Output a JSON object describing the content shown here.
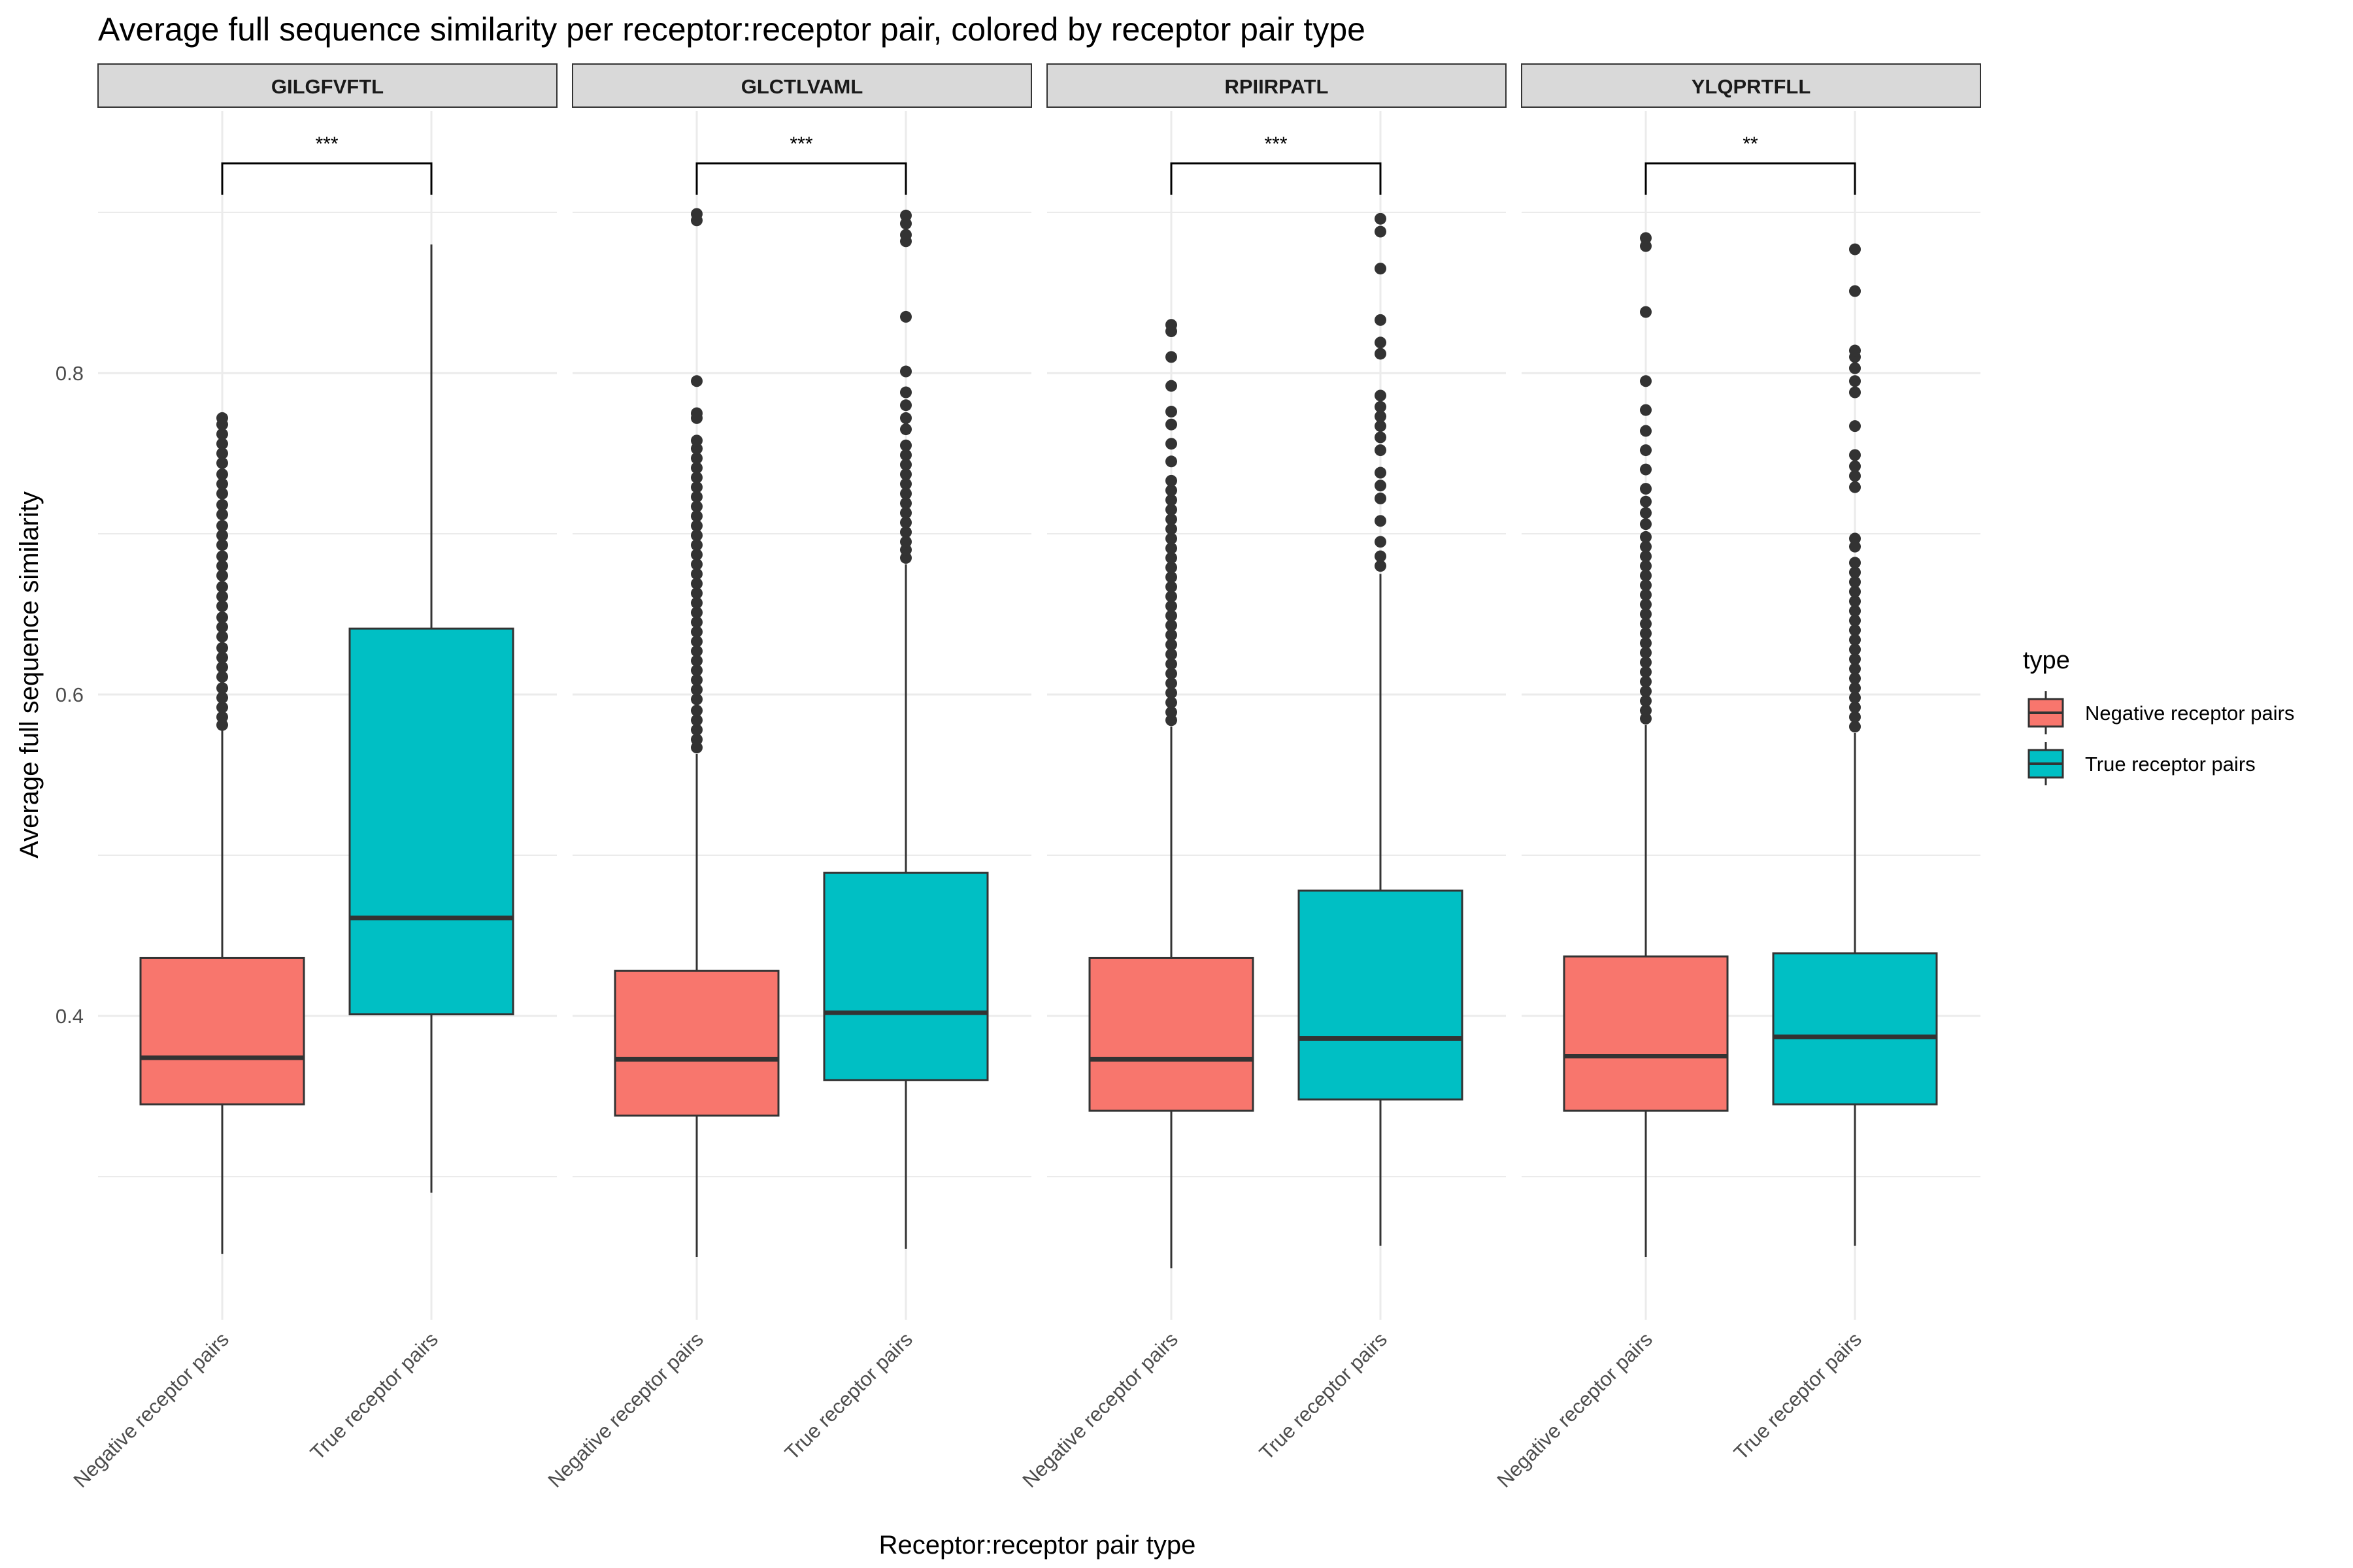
{
  "chart_data": {
    "type": "box",
    "title": "Average full sequence similarity per receptor:receptor pair, colored by receptor pair type",
    "xlabel": "Receptor:receptor pair type",
    "ylabel": "Average full sequence similarity",
    "y_ticks": [
      "0.4",
      "0.6",
      "0.8"
    ],
    "ylim": [
      0.235,
      0.985
    ],
    "categories": [
      "Negative receptor pairs",
      "True receptor pairs"
    ],
    "legend": {
      "title": "type",
      "position": "right",
      "entries": [
        {
          "label": "Negative receptor pairs",
          "color": "#F8766D"
        },
        {
          "label": "True receptor pairs",
          "color": "#00BFC4"
        }
      ]
    },
    "grid": true,
    "panels": [
      {
        "strip": "GILGFVFTL",
        "significance": "***",
        "boxes": [
          {
            "category": "Negative receptor pairs",
            "whisker_low": 0.252,
            "q1": 0.345,
            "median": 0.374,
            "q3": 0.436,
            "whisker_high": 0.578,
            "outliers": [
              0.581,
              0.586,
              0.592,
              0.598,
              0.604,
              0.611,
              0.617,
              0.623,
              0.629,
              0.636,
              0.642,
              0.648,
              0.655,
              0.661,
              0.667,
              0.674,
              0.68,
              0.686,
              0.693,
              0.699,
              0.705,
              0.712,
              0.718,
              0.725,
              0.731,
              0.737,
              0.744,
              0.75,
              0.756,
              0.762,
              0.768,
              0.772
            ]
          },
          {
            "category": "True receptor pairs",
            "whisker_low": 0.29,
            "q1": 0.401,
            "median": 0.461,
            "q3": 0.641,
            "whisker_high": 0.88,
            "outliers": []
          }
        ]
      },
      {
        "strip": "GLCTLVAML",
        "significance": "***",
        "boxes": [
          {
            "category": "Negative receptor pairs",
            "whisker_low": 0.25,
            "q1": 0.338,
            "median": 0.373,
            "q3": 0.428,
            "whisker_high": 0.563,
            "outliers": [
              0.567,
              0.572,
              0.578,
              0.584,
              0.59,
              0.597,
              0.603,
              0.609,
              0.615,
              0.621,
              0.627,
              0.633,
              0.639,
              0.645,
              0.651,
              0.657,
              0.663,
              0.669,
              0.675,
              0.681,
              0.687,
              0.693,
              0.699,
              0.705,
              0.711,
              0.717,
              0.723,
              0.729,
              0.735,
              0.741,
              0.747,
              0.753,
              0.758,
              0.772,
              0.775,
              0.795,
              0.895,
              0.899
            ]
          },
          {
            "category": "True receptor pairs",
            "whisker_low": 0.255,
            "q1": 0.36,
            "median": 0.402,
            "q3": 0.489,
            "whisker_high": 0.681,
            "outliers": [
              0.685,
              0.69,
              0.695,
              0.701,
              0.707,
              0.713,
              0.719,
              0.725,
              0.731,
              0.737,
              0.743,
              0.749,
              0.755,
              0.765,
              0.772,
              0.78,
              0.788,
              0.801,
              0.835,
              0.882,
              0.886,
              0.893,
              0.898
            ]
          }
        ]
      },
      {
        "strip": "RPIIRPATL",
        "significance": "***",
        "boxes": [
          {
            "category": "Negative receptor pairs",
            "whisker_low": 0.243,
            "q1": 0.341,
            "median": 0.373,
            "q3": 0.436,
            "whisker_high": 0.58,
            "outliers": [
              0.584,
              0.589,
              0.595,
              0.601,
              0.607,
              0.613,
              0.619,
              0.625,
              0.631,
              0.637,
              0.643,
              0.649,
              0.655,
              0.661,
              0.667,
              0.673,
              0.679,
              0.685,
              0.691,
              0.697,
              0.703,
              0.709,
              0.715,
              0.721,
              0.727,
              0.733,
              0.745,
              0.756,
              0.768,
              0.776,
              0.792,
              0.81,
              0.826,
              0.83
            ]
          },
          {
            "category": "True receptor pairs",
            "whisker_low": 0.257,
            "q1": 0.348,
            "median": 0.386,
            "q3": 0.478,
            "whisker_high": 0.675,
            "outliers": [
              0.68,
              0.686,
              0.695,
              0.708,
              0.722,
              0.73,
              0.738,
              0.752,
              0.76,
              0.767,
              0.773,
              0.779,
              0.786,
              0.812,
              0.819,
              0.833,
              0.865,
              0.888,
              0.896
            ]
          }
        ]
      },
      {
        "strip": "YLQPRTFLL",
        "significance": "**",
        "boxes": [
          {
            "category": "Negative receptor pairs",
            "whisker_low": 0.25,
            "q1": 0.341,
            "median": 0.375,
            "q3": 0.437,
            "whisker_high": 0.581,
            "outliers": [
              0.585,
              0.59,
              0.596,
              0.602,
              0.608,
              0.614,
              0.62,
              0.626,
              0.632,
              0.638,
              0.644,
              0.65,
              0.656,
              0.662,
              0.668,
              0.674,
              0.68,
              0.686,
              0.692,
              0.698,
              0.706,
              0.713,
              0.72,
              0.728,
              0.74,
              0.752,
              0.764,
              0.777,
              0.795,
              0.838,
              0.879,
              0.884
            ]
          },
          {
            "category": "True receptor pairs",
            "whisker_low": 0.257,
            "q1": 0.345,
            "median": 0.387,
            "q3": 0.439,
            "whisker_high": 0.576,
            "outliers": [
              0.58,
              0.586,
              0.592,
              0.598,
              0.604,
              0.61,
              0.616,
              0.622,
              0.628,
              0.634,
              0.64,
              0.646,
              0.652,
              0.658,
              0.664,
              0.67,
              0.676,
              0.682,
              0.692,
              0.697,
              0.729,
              0.736,
              0.742,
              0.749,
              0.767,
              0.788,
              0.795,
              0.803,
              0.81,
              0.814,
              0.851,
              0.877
            ]
          }
        ]
      }
    ]
  }
}
